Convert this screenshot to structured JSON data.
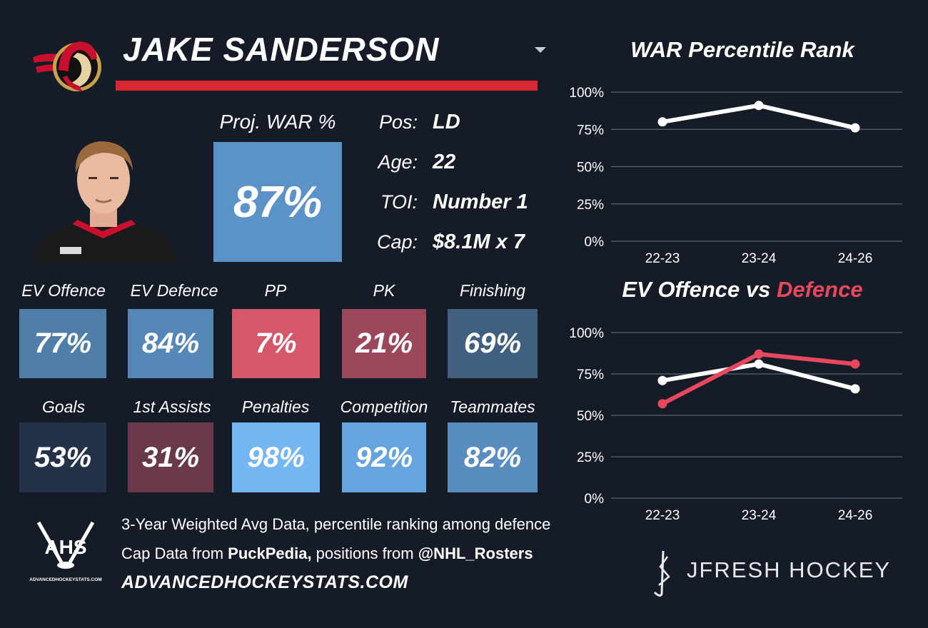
{
  "player": {
    "name": "JAKE SANDERSON"
  },
  "proj_war": {
    "label": "Proj. WAR %",
    "value": "87%"
  },
  "info": [
    {
      "label": "Pos:",
      "value": "LD"
    },
    {
      "label": "Age:",
      "value": "22"
    },
    {
      "label": "TOI:",
      "value": "Number 1"
    },
    {
      "label": "Cap:",
      "value": "$8.1M x 7"
    }
  ],
  "tiles_row1": [
    {
      "label": "EV Offence",
      "value": "77%",
      "color": "#4f7ea8"
    },
    {
      "label": "EV Defence",
      "value": "84%",
      "color": "#5587b6"
    },
    {
      "label": "PP",
      "value": "7%",
      "color": "#d4576a"
    },
    {
      "label": "PK",
      "value": "21%",
      "color": "#9c4759"
    },
    {
      "label": "Finishing",
      "value": "69%",
      "color": "#41607f"
    }
  ],
  "tiles_row2": [
    {
      "label": "Goals",
      "value": "53%",
      "color": "#243249"
    },
    {
      "label": "1st Assists",
      "value": "31%",
      "color": "#69384a"
    },
    {
      "label": "Penalties",
      "value": "98%",
      "color": "#74b6f2"
    },
    {
      "label": "Competition",
      "value": "92%",
      "color": "#66a4df"
    },
    {
      "label": "Teammates",
      "value": "82%",
      "color": "#5a8dbf"
    }
  ],
  "chart_data": [
    {
      "type": "line",
      "title": "WAR Percentile Rank",
      "categories": [
        "22-23",
        "23-24",
        "24-26"
      ],
      "series": [
        {
          "values": [
            80,
            91,
            76
          ],
          "color": "#ffffff"
        }
      ],
      "ylim": [
        0,
        100
      ],
      "yticks": [
        "0%",
        "25%",
        "50%",
        "75%",
        "100%"
      ],
      "grid": true
    },
    {
      "type": "line",
      "title_part1": "EV Offence vs ",
      "title_part2": "Defence",
      "title_part2_color": "#e8485e",
      "categories": [
        "22-23",
        "23-24",
        "24-26"
      ],
      "series": [
        {
          "values": [
            71,
            81,
            66
          ],
          "color": "#ffffff"
        },
        {
          "values": [
            57,
            87,
            81
          ],
          "color": "#e8485e"
        }
      ],
      "ylim": [
        0,
        100
      ],
      "yticks": [
        "0%",
        "25%",
        "50%",
        "75%",
        "100%"
      ],
      "grid": true
    }
  ],
  "footer": {
    "line1": "3-Year Weighted Avg Data, percentile ranking among defence",
    "line2_a": "Cap Data from ",
    "line2_b": "PuckPedia,",
    "line2_c": " positions from ",
    "line2_d": "@NHL_Rosters",
    "site": "ADVANCEDHOCKEYSTATS.COM",
    "ahs_logo_text": "AHS",
    "ahs_logo_sub": "ADVANCEDHOCKEYSTATS.COM",
    "brand": "JFRESH HOCKEY"
  },
  "icons": {
    "team_logo": "senators-logo-icon",
    "dropdown": "chevron-down-icon",
    "headshot": "player-headshot",
    "ahs_logo": "ahs-logo-icon",
    "brand_logo": "jfresh-logo-icon"
  }
}
